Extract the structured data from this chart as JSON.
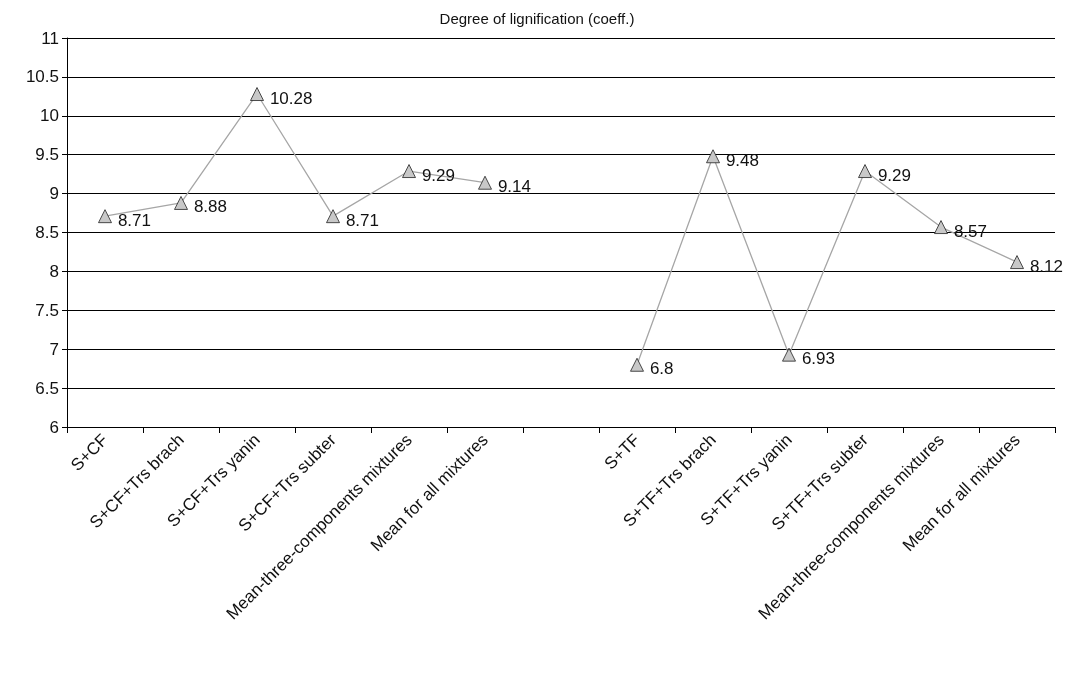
{
  "chart_data": {
    "type": "line",
    "title": "Degree of lignification (coeff.)",
    "categories": [
      "S+CF",
      "S+CF+Trs brach",
      "S+CF+Trs yanin",
      "S+CF+Trs subter",
      "Mean-three-components mixtures",
      "Mean for all mixtures",
      null,
      "S+TF",
      "S+TF+Trs brach",
      "S+TF+Trs yanin",
      "S+TF+Trs subter",
      "Mean-three-components mixtures",
      "Mean for all mixtures"
    ],
    "series": [
      {
        "color": "#a6a6a6",
        "values": [
          8.71,
          8.88,
          10.28,
          8.71,
          9.29,
          9.14,
          null,
          6.8,
          9.48,
          6.93,
          9.29,
          8.57,
          8.12
        ]
      }
    ],
    "ylim": [
      6,
      11
    ],
    "yticks": [
      6,
      6.5,
      7,
      7.5,
      8,
      8.5,
      9,
      9.5,
      10,
      10.5,
      11
    ],
    "grid": "y",
    "marker": "triangle",
    "line_style": "solid",
    "data_labels": true
  }
}
